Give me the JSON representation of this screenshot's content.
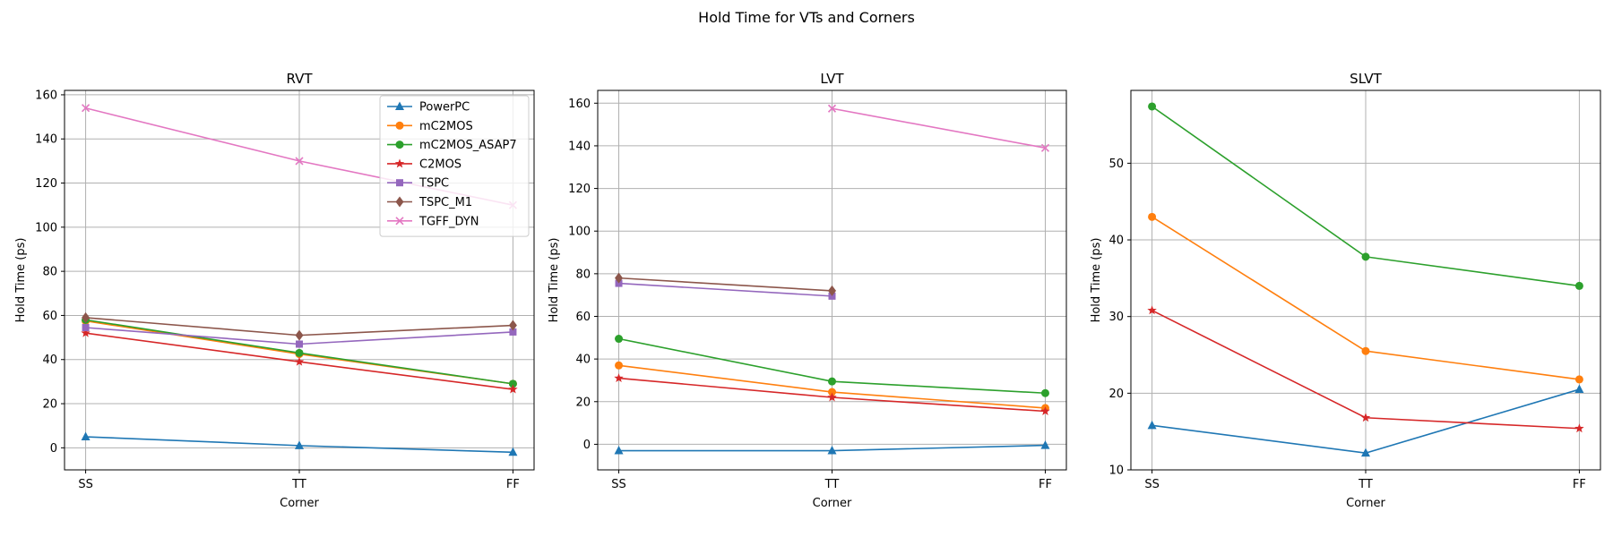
{
  "figure": {
    "title": "Hold Time for VTs and Corners"
  },
  "series_styles": {
    "PowerPC": {
      "color": "#1f77b4",
      "marker": "triangle"
    },
    "mC2MOS": {
      "color": "#ff7f0e",
      "marker": "circle"
    },
    "mC2MOS_ASAP7": {
      "color": "#2ca02c",
      "marker": "circle"
    },
    "C2MOS": {
      "color": "#d62728",
      "marker": "star"
    },
    "TSPC": {
      "color": "#9467bd",
      "marker": "square"
    },
    "TSPC_M1": {
      "color": "#8c564b",
      "marker": "diamond"
    },
    "TGFF_DYN": {
      "color": "#e377c2",
      "marker": "x"
    }
  },
  "chart_data": [
    {
      "type": "line",
      "title": "RVT",
      "xlabel": "Corner",
      "ylabel": "Hold Time (ps)",
      "categories": [
        "SS",
        "TT",
        "FF"
      ],
      "ylim": [
        -10,
        162
      ],
      "yticks": [
        0,
        20,
        40,
        60,
        80,
        100,
        120,
        140,
        160
      ],
      "grid": true,
      "legend": "upper right",
      "series": [
        {
          "name": "PowerPC",
          "values": [
            5,
            1,
            -2
          ]
        },
        {
          "name": "mC2MOS",
          "values": [
            57.5,
            42.5,
            29
          ]
        },
        {
          "name": "mC2MOS_ASAP7",
          "values": [
            58,
            43,
            29
          ]
        },
        {
          "name": "C2MOS",
          "values": [
            52,
            39,
            26.5
          ]
        },
        {
          "name": "TSPC",
          "values": [
            54.5,
            47,
            52.5
          ]
        },
        {
          "name": "TSPC_M1",
          "values": [
            59,
            51,
            55.5
          ]
        },
        {
          "name": "TGFF_DYN",
          "values": [
            154,
            130,
            110
          ]
        }
      ]
    },
    {
      "type": "line",
      "title": "LVT",
      "xlabel": "Corner",
      "ylabel": "Hold Time (ps)",
      "categories": [
        "SS",
        "TT",
        "FF"
      ],
      "ylim": [
        -12,
        166
      ],
      "yticks": [
        0,
        20,
        40,
        60,
        80,
        100,
        120,
        140,
        160
      ],
      "grid": true,
      "series": [
        {
          "name": "PowerPC",
          "values": [
            -3,
            -3,
            -0.5
          ]
        },
        {
          "name": "mC2MOS",
          "values": [
            37,
            24.5,
            17
          ]
        },
        {
          "name": "mC2MOS_ASAP7",
          "values": [
            49.5,
            29.5,
            24
          ]
        },
        {
          "name": "C2MOS",
          "values": [
            31,
            22,
            15.5
          ]
        },
        {
          "name": "TSPC",
          "values": [
            75.5,
            69.5,
            null
          ]
        },
        {
          "name": "TSPC_M1",
          "values": [
            78,
            72,
            null
          ]
        },
        {
          "name": "TGFF_DYN",
          "values": [
            null,
            157.5,
            139
          ]
        }
      ]
    },
    {
      "type": "line",
      "title": "SLVT",
      "xlabel": "Corner",
      "ylabel": "Hold Time (ps)",
      "categories": [
        "SS",
        "TT",
        "FF"
      ],
      "ylim": [
        10,
        59.5
      ],
      "yticks": [
        10,
        20,
        30,
        40,
        50
      ],
      "grid": true,
      "series": [
        {
          "name": "PowerPC",
          "values": [
            15.8,
            12.2,
            20.5
          ]
        },
        {
          "name": "mC2MOS",
          "values": [
            43,
            25.5,
            21.8
          ]
        },
        {
          "name": "mC2MOS_ASAP7",
          "values": [
            57.4,
            37.8,
            34
          ]
        },
        {
          "name": "C2MOS",
          "values": [
            30.8,
            16.8,
            15.4
          ]
        }
      ]
    }
  ]
}
